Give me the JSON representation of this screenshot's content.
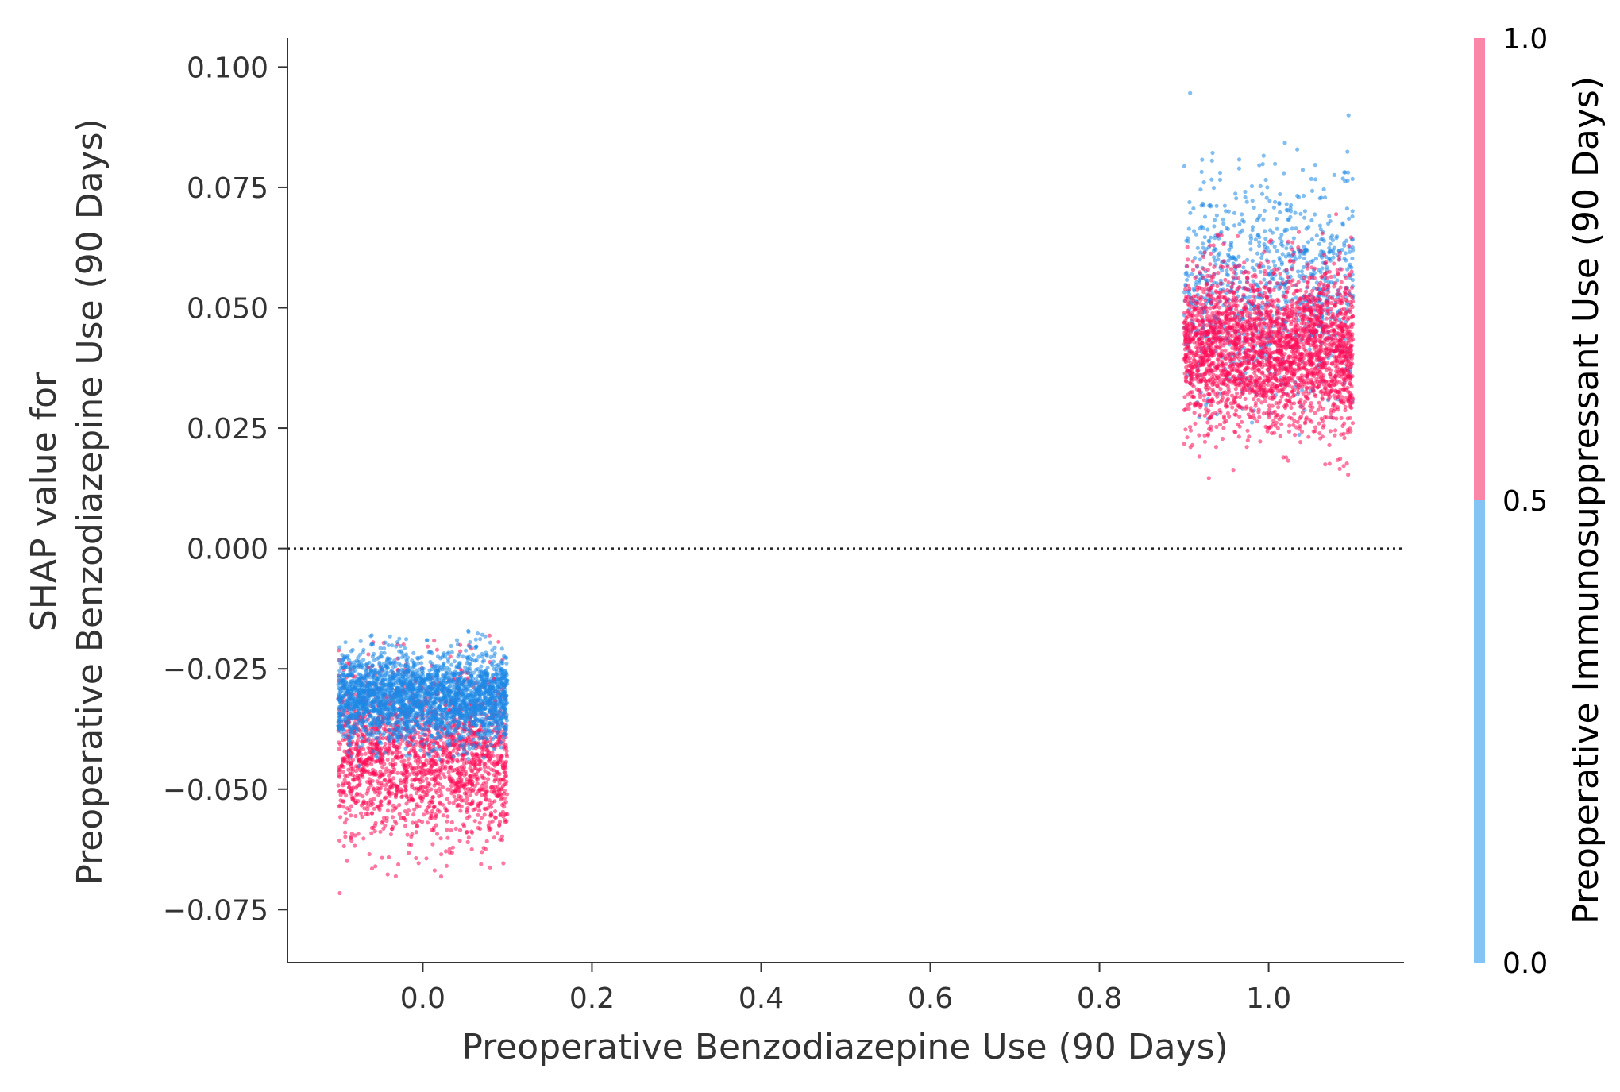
{
  "chart_data": {
    "type": "scatter",
    "title": "",
    "xlabel": "Preoperative Benzodiazepine Use (90 Days)",
    "ylabel_line1": "SHAP value for",
    "ylabel_line2": "Preoperative Benzodiazepine Use (90 Days)",
    "xlim": [
      -0.16,
      1.16
    ],
    "ylim": [
      -0.086,
      0.106
    ],
    "x_ticks": [
      0.0,
      0.2,
      0.4,
      0.6,
      0.8,
      1.0
    ],
    "x_tick_labels": [
      "0.0",
      "0.2",
      "0.4",
      "0.6",
      "0.8",
      "1.0"
    ],
    "y_ticks": [
      0.1,
      0.075,
      0.05,
      0.025,
      0.0,
      -0.025,
      -0.05,
      -0.075
    ],
    "y_tick_labels": [
      "0.100",
      "0.075",
      "0.050",
      "0.025",
      "0.000",
      "−0.025",
      "−0.050",
      "−0.075"
    ],
    "zero_line": true,
    "grid": false,
    "jitter_width": 0.1,
    "clusters": [
      {
        "feature_value": 0.0,
        "color_value_1": {
          "shap_mean": -0.043,
          "shap_std": 0.0085,
          "shap_min": -0.077,
          "shap_max": -0.013,
          "count": 1900
        },
        "color_value_0": {
          "shap_mean": -0.031,
          "shap_std": 0.0045,
          "shap_min": -0.046,
          "shap_max": -0.012,
          "count": 2600
        }
      },
      {
        "feature_value": 1.0,
        "color_value_1": {
          "shap_mean": 0.041,
          "shap_std": 0.0085,
          "shap_min": 0.014,
          "shap_max": 0.07,
          "count": 2600
        },
        "color_value_0": {
          "shap_mean": 0.055,
          "shap_std": 0.012,
          "shap_min": 0.022,
          "shap_max": 0.097,
          "count": 900
        }
      }
    ],
    "colorbar": {
      "title": "Preoperative Immunosuppressant Use (90 Days)",
      "range": [
        0.0,
        1.0
      ],
      "tick_values": [
        0.0,
        0.5,
        1.0
      ],
      "tick_labels": [
        "0.0",
        "0.5",
        "1.0"
      ],
      "color_low": "#84c4f5",
      "color_high": "#fb86a8"
    },
    "point_color_low": "#1e88e5",
    "point_color_high": "#ff0d57"
  }
}
